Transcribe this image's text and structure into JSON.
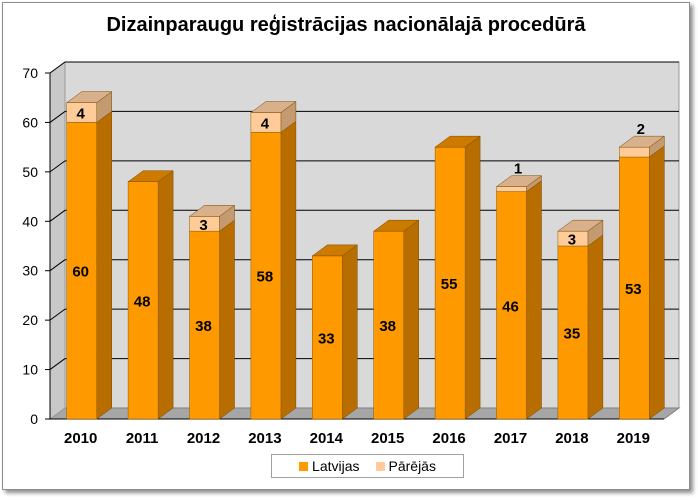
{
  "chart_data": {
    "type": "bar",
    "stacked": true,
    "title": "Dizainparaugu reģistrācijas nacionālajā procedūrā",
    "categories": [
      "2010",
      "2011",
      "2012",
      "2013",
      "2014",
      "2015",
      "2016",
      "2017",
      "2018",
      "2019"
    ],
    "series": [
      {
        "name": "Latvijas",
        "values": [
          60,
          48,
          38,
          58,
          33,
          38,
          55,
          46,
          35,
          53
        ],
        "color": "#ff9900",
        "side_color": "#b86d00",
        "top_color": "#cc7a00"
      },
      {
        "name": "Pārējās",
        "values": [
          4,
          0,
          3,
          4,
          0,
          0,
          0,
          1,
          3,
          2
        ],
        "color": "#ffcc99",
        "side_color": "#c49a70",
        "top_color": "#d9b08c"
      }
    ],
    "ylim": [
      0,
      70
    ],
    "yticks": [
      0,
      10,
      20,
      30,
      40,
      50,
      60,
      70
    ],
    "grid": true,
    "legend": "bottom",
    "plot_background": "#d9d9d9",
    "floor_color": "#a6a6a6"
  }
}
